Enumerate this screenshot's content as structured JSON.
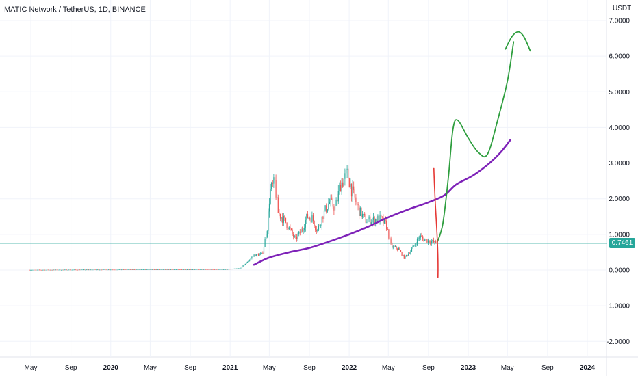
{
  "chart_data": {
    "type": "candlestick",
    "title": "MATIC Network / TetherUS, 1D, BINANCE",
    "y_axis_unit": "USDT",
    "ylim": [
      -2.2,
      7.3
    ],
    "y_ticks": [
      "7.0000",
      "6.0000",
      "5.0000",
      "4.0000",
      "3.0000",
      "2.0000",
      "1.0000",
      "0.0000",
      "-1.0000",
      "-2.0000"
    ],
    "y_tick_values": [
      7,
      6,
      5,
      4,
      3,
      2,
      1,
      0,
      -1,
      -2
    ],
    "x_ticks": [
      {
        "label": "May",
        "date": "2019-05-01",
        "bold": false
      },
      {
        "label": "Sep",
        "date": "2019-09-01",
        "bold": false
      },
      {
        "label": "2020",
        "date": "2020-01-01",
        "bold": true
      },
      {
        "label": "May",
        "date": "2020-05-01",
        "bold": false
      },
      {
        "label": "Sep",
        "date": "2020-09-01",
        "bold": false
      },
      {
        "label": "2021",
        "date": "2021-01-01",
        "bold": true
      },
      {
        "label": "May",
        "date": "2021-05-01",
        "bold": false
      },
      {
        "label": "Sep",
        "date": "2021-09-01",
        "bold": false
      },
      {
        "label": "2022",
        "date": "2022-01-01",
        "bold": true
      },
      {
        "label": "May",
        "date": "2022-05-01",
        "bold": false
      },
      {
        "label": "Sep",
        "date": "2022-09-01",
        "bold": false
      },
      {
        "label": "2023",
        "date": "2023-01-01",
        "bold": true
      },
      {
        "label": "May",
        "date": "2023-05-01",
        "bold": false
      },
      {
        "label": "Sep",
        "date": "2023-09-01",
        "bold": false
      },
      {
        "label": "2024",
        "date": "2024-01-01",
        "bold": true
      }
    ],
    "last_price": "0.7461",
    "last_price_value": 0.7461,
    "grid": true,
    "colors": {
      "up": "#26a69a",
      "down": "#ef5350",
      "ma": "#7e22b8",
      "projection": "#2e9e3e",
      "marker": "#e53935",
      "price_line": "#26a69a",
      "grid": "#f0f3fa",
      "tag": "#26a69a"
    },
    "price": [
      {
        "date": "2019-04-27",
        "value": 0.003
      },
      {
        "date": "2020-03-01",
        "value": 0.015
      },
      {
        "date": "2020-12-20",
        "value": 0.02
      },
      {
        "date": "2021-02-01",
        "value": 0.05
      },
      {
        "date": "2021-02-25",
        "value": 0.25
      },
      {
        "date": "2021-03-15",
        "value": 0.42
      },
      {
        "date": "2021-04-10",
        "value": 0.45
      },
      {
        "date": "2021-04-25",
        "value": 1.2
      },
      {
        "date": "2021-05-03",
        "value": 2.2
      },
      {
        "date": "2021-05-18",
        "value": 2.45
      },
      {
        "date": "2021-05-28",
        "value": 1.6
      },
      {
        "date": "2021-06-20",
        "value": 1.35
      },
      {
        "date": "2021-07-20",
        "value": 0.85
      },
      {
        "date": "2021-08-10",
        "value": 1.15
      },
      {
        "date": "2021-08-25",
        "value": 1.5
      },
      {
        "date": "2021-09-10",
        "value": 1.45
      },
      {
        "date": "2021-09-25",
        "value": 1.1
      },
      {
        "date": "2021-10-15",
        "value": 1.6
      },
      {
        "date": "2021-11-01",
        "value": 1.9
      },
      {
        "date": "2021-11-20",
        "value": 1.75
      },
      {
        "date": "2021-12-05",
        "value": 2.4
      },
      {
        "date": "2021-12-27",
        "value": 2.7
      },
      {
        "date": "2022-01-10",
        "value": 2.2
      },
      {
        "date": "2022-02-01",
        "value": 1.65
      },
      {
        "date": "2022-02-20",
        "value": 1.4
      },
      {
        "date": "2022-03-15",
        "value": 1.4
      },
      {
        "date": "2022-04-05",
        "value": 1.45
      },
      {
        "date": "2022-04-25",
        "value": 1.25
      },
      {
        "date": "2022-05-10",
        "value": 0.65
      },
      {
        "date": "2022-06-01",
        "value": 0.6
      },
      {
        "date": "2022-06-18",
        "value": 0.34
      },
      {
        "date": "2022-07-10",
        "value": 0.55
      },
      {
        "date": "2022-08-05",
        "value": 0.95
      },
      {
        "date": "2022-08-20",
        "value": 0.85
      },
      {
        "date": "2022-09-10",
        "value": 0.8
      },
      {
        "date": "2022-09-25",
        "value": 0.75
      }
    ],
    "moving_average": [
      {
        "date": "2021-03-15",
        "value": 0.15
      },
      {
        "date": "2021-05-01",
        "value": 0.35
      },
      {
        "date": "2021-07-01",
        "value": 0.5
      },
      {
        "date": "2021-09-01",
        "value": 0.62
      },
      {
        "date": "2021-11-01",
        "value": 0.8
      },
      {
        "date": "2022-01-01",
        "value": 1.0
      },
      {
        "date": "2022-03-01",
        "value": 1.22
      },
      {
        "date": "2022-05-01",
        "value": 1.48
      },
      {
        "date": "2022-07-01",
        "value": 1.7
      },
      {
        "date": "2022-09-01",
        "value": 1.9
      },
      {
        "date": "2022-10-20",
        "value": 2.1
      },
      {
        "date": "2022-11-25",
        "value": 2.4
      },
      {
        "date": "2023-01-15",
        "value": 2.65
      },
      {
        "date": "2023-03-01",
        "value": 2.95
      },
      {
        "date": "2023-04-10",
        "value": 3.3
      },
      {
        "date": "2023-05-10",
        "value": 3.65
      }
    ],
    "projection": [
      {
        "date": "2022-09-28",
        "value": 0.78
      },
      {
        "date": "2022-10-15",
        "value": 1.3
      },
      {
        "date": "2022-11-01",
        "value": 2.6
      },
      {
        "date": "2022-11-15",
        "value": 3.95
      },
      {
        "date": "2022-11-30",
        "value": 4.2
      },
      {
        "date": "2023-01-01",
        "value": 3.7
      },
      {
        "date": "2023-02-01",
        "value": 3.3
      },
      {
        "date": "2023-03-01",
        "value": 3.25
      },
      {
        "date": "2023-04-01",
        "value": 4.2
      },
      {
        "date": "2023-05-01",
        "value": 5.3
      },
      {
        "date": "2023-05-20",
        "value": 6.4
      }
    ],
    "projection_arc": [
      {
        "date": "2023-04-25",
        "value": 6.2
      },
      {
        "date": "2023-05-15",
        "value": 6.55
      },
      {
        "date": "2023-06-03",
        "value": 6.68
      },
      {
        "date": "2023-06-20",
        "value": 6.55
      },
      {
        "date": "2023-07-10",
        "value": 6.15
      }
    ],
    "vertical_marker": {
      "date": "2022-09-28",
      "from": -0.2,
      "to": 2.85
    }
  }
}
